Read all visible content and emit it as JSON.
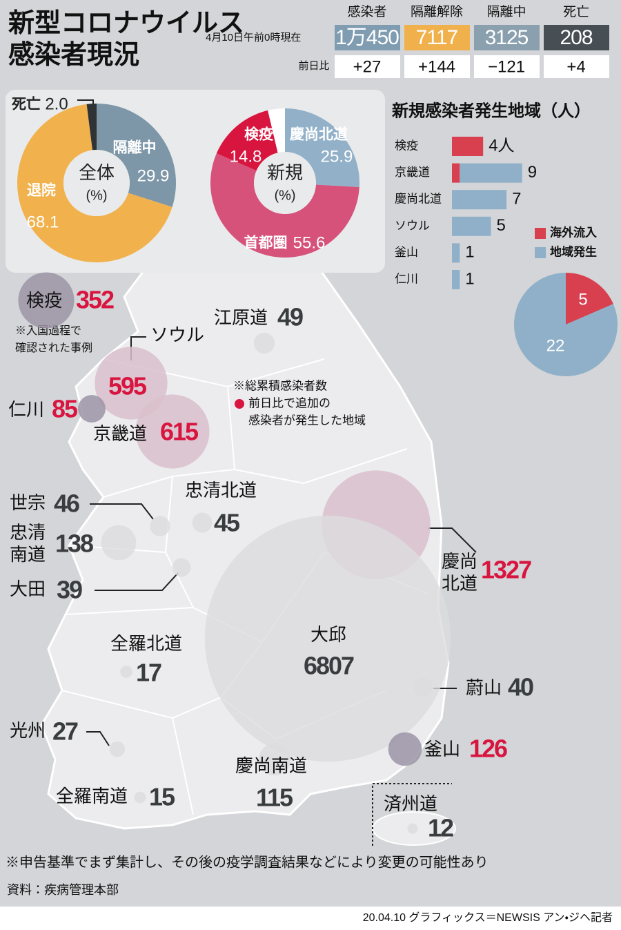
{
  "header": {
    "title_lines": [
      "新型コロナウイルス",
      "感染者現況"
    ],
    "as_of": "4月10日午前0時現在",
    "change_label": "前日比",
    "columns": [
      {
        "label": "感染者",
        "total": "1万450",
        "change": "+27",
        "color": "#7f9cb1"
      },
      {
        "label": "隔離解除",
        "total": "7117",
        "change": "+144",
        "color": "#f0b04c"
      },
      {
        "label": "隔離中",
        "total": "3125",
        "change": "−121",
        "color": "#8aa0ae"
      },
      {
        "label": "死亡",
        "total": "208",
        "change": "+4",
        "color": "#474f55"
      }
    ]
  },
  "chart_data": [
    {
      "type": "pie",
      "center_lines": [
        "全体",
        "(%)"
      ],
      "categories": [
        "隔離中",
        "退院",
        "死亡"
      ],
      "values": [
        29.9,
        68.1,
        2.0
      ],
      "value_labels": [
        "29.9",
        "68.1",
        "2.0"
      ],
      "colors": [
        "#7d97a8",
        "#f1b24d",
        "#2f3335"
      ]
    },
    {
      "type": "pie",
      "center_lines": [
        "新規",
        "(%)"
      ],
      "categories": [
        "慶尚北道",
        "首都圏",
        "検疫",
        null
      ],
      "values": [
        25.9,
        55.6,
        14.8,
        3.7
      ],
      "value_labels": [
        "25.9",
        "55.6",
        "14.8",
        null
      ],
      "colors": [
        "#92b1c8",
        "#d6527a",
        "#d8153f",
        "#ffffff"
      ]
    },
    {
      "type": "bar",
      "title": "新規感染者発生地域（人）",
      "categories": [
        "検疫",
        "京畿道",
        "慶尚北道",
        "ソウル",
        "釜山",
        "仁川"
      ],
      "series": [
        {
          "name": "海外流入",
          "color": "#d8404f",
          "values": [
            4,
            1,
            0,
            0,
            0,
            0
          ]
        },
        {
          "name": "地域発生",
          "color": "#8fb0c8",
          "values": [
            0,
            8,
            7,
            5,
            1,
            1
          ]
        }
      ],
      "total_labels": [
        "4人",
        "9",
        "7",
        "5",
        "1",
        "1"
      ]
    },
    {
      "type": "pie",
      "values": [
        5,
        22
      ],
      "colors": [
        "#d8404f",
        "#8fb0c8"
      ]
    }
  ],
  "map": {
    "note_lines": [
      "※総累積感染者数",
      "前日比で追加の",
      "感染者が発生した地域"
    ],
    "quarantine_note_lines": [
      "※入国過程で",
      "確認された事例"
    ],
    "regions": [
      {
        "name_lines": [
          "検疫"
        ],
        "value": 352,
        "highlight": true
      },
      {
        "name_lines": [
          "ソウル"
        ],
        "value": 595,
        "highlight": true
      },
      {
        "name_lines": [
          "仁川"
        ],
        "value": 85,
        "highlight": true
      },
      {
        "name_lines": [
          "京畿道"
        ],
        "value": 615,
        "highlight": true
      },
      {
        "name_lines": [
          "江原道"
        ],
        "value": 49,
        "highlight": false
      },
      {
        "name_lines": [
          "忠清北道"
        ],
        "value": 45,
        "highlight": false
      },
      {
        "name_lines": [
          "世宗"
        ],
        "value": 46,
        "highlight": false
      },
      {
        "name_lines": [
          "忠清",
          "南道"
        ],
        "value": 138,
        "highlight": false
      },
      {
        "name_lines": [
          "大田"
        ],
        "value": 39,
        "highlight": false
      },
      {
        "name_lines": [
          "慶尚",
          "北道"
        ],
        "value": 1327,
        "highlight": true
      },
      {
        "name_lines": [
          "大邱"
        ],
        "value": 6807,
        "highlight": false
      },
      {
        "name_lines": [
          "全羅北道"
        ],
        "value": 17,
        "highlight": false
      },
      {
        "name_lines": [
          "蔚山"
        ],
        "value": 40,
        "highlight": false
      },
      {
        "name_lines": [
          "釜山"
        ],
        "value": 126,
        "highlight": true
      },
      {
        "name_lines": [
          "光州"
        ],
        "value": 27,
        "highlight": false
      },
      {
        "name_lines": [
          "慶尚南道"
        ],
        "value": 115,
        "highlight": false
      },
      {
        "name_lines": [
          "全羅南道"
        ],
        "value": 15,
        "highlight": false
      },
      {
        "name_lines": [
          "済州道"
        ],
        "value": 12,
        "highlight": false
      }
    ]
  },
  "footer": {
    "note": "※申告基準でまず集計し、その後の疫学調査結果などにより変更の可能性あり",
    "source": "資料：疾病管理本部",
    "credit": "20.04.10 グラフィックス＝NEWSIS アン・ジヘ記者"
  }
}
